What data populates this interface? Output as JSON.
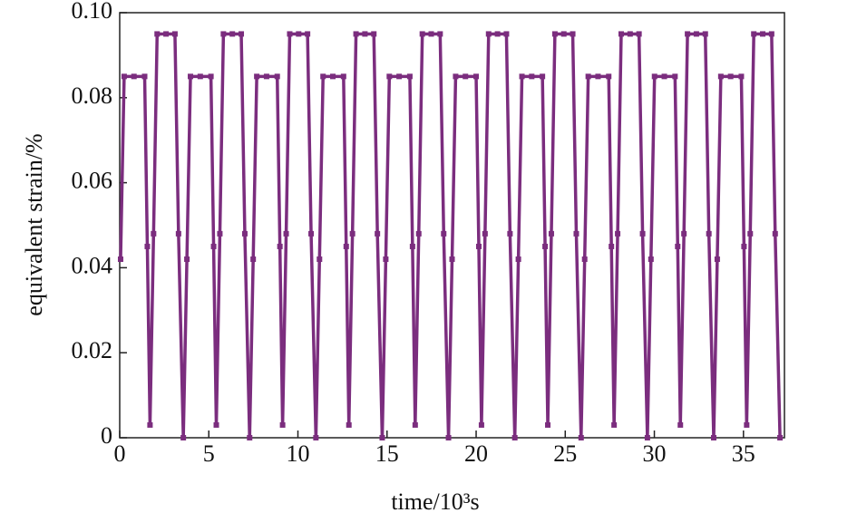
{
  "chart_data": {
    "type": "line",
    "xlabel": "time/10³s",
    "ylabel": "equivalent strain/%",
    "xlim": [
      0,
      37.3
    ],
    "ylim": [
      0,
      0.1
    ],
    "xticks": [
      0,
      5,
      10,
      15,
      20,
      25,
      30,
      35
    ],
    "yticks": [
      0,
      0.02,
      0.04,
      0.06,
      0.08,
      {
        "value": 0.1,
        "label": "0.10"
      }
    ],
    "grid": false,
    "markers": true,
    "series": [
      {
        "name": "equivalent strain",
        "color": "#7b2d7e",
        "x": [
          0.05,
          0.25,
          0.8,
          1.4,
          1.55,
          1.7,
          1.9,
          2.1,
          2.6,
          3.1,
          3.3,
          3.57,
          3.77,
          3.97,
          4.52,
          5.12,
          5.27,
          5.42,
          5.62,
          5.82,
          6.32,
          6.82,
          7.02,
          7.29,
          7.49,
          7.69,
          8.24,
          8.84,
          8.99,
          9.14,
          9.34,
          9.54,
          10.04,
          10.54,
          10.74,
          11.01,
          11.21,
          11.41,
          11.96,
          12.56,
          12.71,
          12.86,
          13.06,
          13.26,
          13.76,
          14.26,
          14.46,
          14.73,
          14.93,
          15.13,
          15.68,
          16.28,
          16.43,
          16.58,
          16.78,
          16.98,
          17.48,
          17.98,
          18.18,
          18.45,
          18.65,
          18.85,
          19.4,
          20,
          20.15,
          20.3,
          20.5,
          20.7,
          21.2,
          21.7,
          21.9,
          22.17,
          22.37,
          22.57,
          23.12,
          23.72,
          23.87,
          24.02,
          24.22,
          24.42,
          24.92,
          25.42,
          25.62,
          25.89,
          26.09,
          26.29,
          26.84,
          27.44,
          27.59,
          27.74,
          27.94,
          28.14,
          28.64,
          29.14,
          29.34,
          29.61,
          29.81,
          30.01,
          30.56,
          31.16,
          31.31,
          31.46,
          31.66,
          31.86,
          32.36,
          32.86,
          33.06,
          33.33,
          33.53,
          33.73,
          34.28,
          34.88,
          35.03,
          35.18,
          35.38,
          35.58,
          36.08,
          36.58,
          36.78,
          37.05
        ],
        "values": [
          0.042,
          0.085,
          0.085,
          0.085,
          0.045,
          0.003,
          0.048,
          0.095,
          0.095,
          0.095,
          0.048,
          0,
          0.042,
          0.085,
          0.085,
          0.085,
          0.045,
          0.003,
          0.048,
          0.095,
          0.095,
          0.095,
          0.048,
          0,
          0.042,
          0.085,
          0.085,
          0.085,
          0.045,
          0.003,
          0.048,
          0.095,
          0.095,
          0.095,
          0.048,
          0,
          0.042,
          0.085,
          0.085,
          0.085,
          0.045,
          0.003,
          0.048,
          0.095,
          0.095,
          0.095,
          0.048,
          0,
          0.042,
          0.085,
          0.085,
          0.085,
          0.045,
          0.003,
          0.048,
          0.095,
          0.095,
          0.095,
          0.048,
          0,
          0.042,
          0.085,
          0.085,
          0.085,
          0.045,
          0.003,
          0.048,
          0.095,
          0.095,
          0.095,
          0.048,
          0,
          0.042,
          0.085,
          0.085,
          0.085,
          0.045,
          0.003,
          0.048,
          0.095,
          0.095,
          0.095,
          0.048,
          0,
          0.042,
          0.085,
          0.085,
          0.085,
          0.045,
          0.003,
          0.048,
          0.095,
          0.095,
          0.095,
          0.048,
          0,
          0.042,
          0.085,
          0.085,
          0.085,
          0.045,
          0.003,
          0.048,
          0.095,
          0.095,
          0.095,
          0.048,
          0,
          0.042,
          0.085,
          0.085,
          0.085,
          0.045,
          0.003,
          0.048,
          0.095,
          0.095,
          0.095,
          0.048,
          0
        ]
      }
    ]
  }
}
